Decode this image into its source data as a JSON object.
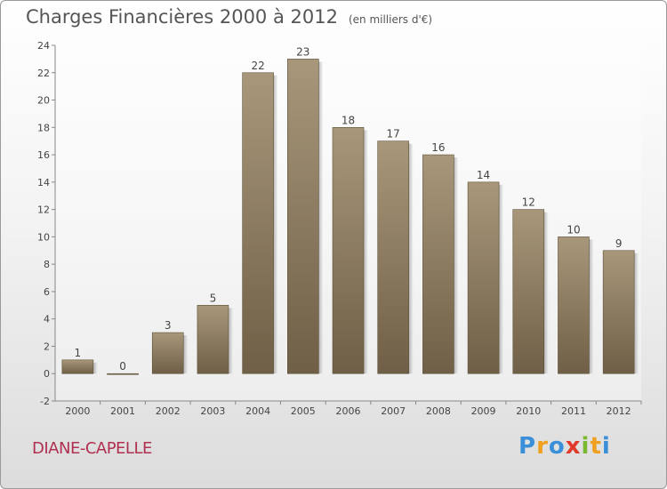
{
  "chart_data": {
    "type": "bar",
    "title": "Charges Financières 2000 à 2012",
    "subtitle": "(en milliers d'€)",
    "categories": [
      "2000",
      "2001",
      "2002",
      "2003",
      "2004",
      "2005",
      "2006",
      "2007",
      "2008",
      "2009",
      "2010",
      "2011",
      "2012"
    ],
    "values": [
      1,
      0,
      3,
      5,
      22,
      23,
      18,
      17,
      16,
      14,
      12,
      10,
      9
    ],
    "ylim": [
      -2,
      24
    ],
    "yticks": [
      -2,
      0,
      2,
      4,
      6,
      8,
      10,
      12,
      14,
      16,
      18,
      20,
      22,
      24
    ],
    "grid": false,
    "bar_color": "#8e7d62",
    "xlabel": "",
    "ylabel": ""
  },
  "commune": "DIANE-CAPELLE",
  "logo": {
    "letters": [
      "P",
      "r",
      "o",
      "x",
      "i",
      "t",
      "i"
    ],
    "colors": [
      "#3a8fd8",
      "#f0a020",
      "#3a8fd8",
      "#e03a2a",
      "#7ab830",
      "#f0a020",
      "#3a8fd8"
    ]
  }
}
